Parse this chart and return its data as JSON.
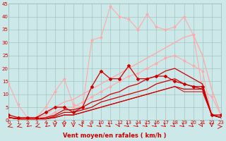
{
  "xlabel": "Vent moyen/en rafales ( km/h )",
  "bg_color": "#cce8e8",
  "grid_color": "#99bbbb",
  "xmin": 0,
  "xmax": 23,
  "ymin": 0,
  "ymax": 45,
  "yticks": [
    0,
    5,
    10,
    15,
    20,
    25,
    30,
    35,
    40,
    45
  ],
  "xticks": [
    0,
    1,
    2,
    3,
    4,
    5,
    6,
    7,
    8,
    9,
    10,
    11,
    12,
    13,
    14,
    15,
    16,
    17,
    18,
    19,
    20,
    21,
    22,
    23
  ],
  "lines": [
    {
      "x": [
        0,
        1,
        2,
        3,
        4,
        5,
        6,
        7,
        8,
        9,
        10,
        11,
        12,
        13,
        14,
        15,
        16,
        17,
        18,
        19,
        20,
        21,
        22,
        23
      ],
      "y": [
        14,
        6,
        1,
        1,
        5,
        11,
        16,
        6,
        5,
        31,
        32,
        44,
        40,
        39,
        35,
        41,
        36,
        35,
        36,
        40,
        33,
        12,
        9,
        2
      ],
      "color": "#ffaaaa",
      "marker": "*",
      "markersize": 2.5,
      "linewidth": 0.8,
      "alpha": 1.0
    },
    {
      "x": [
        0,
        1,
        2,
        3,
        4,
        5,
        6,
        7,
        8,
        9,
        10,
        11,
        12,
        13,
        14,
        15,
        16,
        17,
        18,
        19,
        20,
        21,
        22,
        23
      ],
      "y": [
        1,
        1,
        1,
        1,
        2,
        5,
        7,
        8,
        10,
        12,
        14,
        16,
        18,
        20,
        22,
        24,
        26,
        28,
        30,
        32,
        33,
        25,
        12,
        2
      ],
      "color": "#ffaaaa",
      "marker": null,
      "markersize": 0,
      "linewidth": 1.0,
      "alpha": 1.0
    },
    {
      "x": [
        0,
        1,
        2,
        3,
        4,
        5,
        6,
        7,
        8,
        9,
        10,
        11,
        12,
        13,
        14,
        15,
        16,
        17,
        18,
        19,
        20,
        21,
        22,
        23
      ],
      "y": [
        1,
        1,
        1,
        1,
        1,
        3,
        5,
        5,
        7,
        9,
        11,
        13,
        15,
        17,
        18,
        20,
        22,
        24,
        25,
        23,
        21,
        19,
        2,
        2
      ],
      "color": "#ffaaaa",
      "marker": "*",
      "markersize": 2.5,
      "linewidth": 0.8,
      "alpha": 1.0
    },
    {
      "x": [
        0,
        1,
        2,
        3,
        4,
        5,
        6,
        7,
        8,
        9,
        10,
        11,
        12,
        13,
        14,
        15,
        16,
        17,
        18,
        19,
        20,
        21,
        22,
        23
      ],
      "y": [
        2,
        1,
        1,
        1,
        3,
        5,
        5,
        3,
        5,
        13,
        19,
        16,
        16,
        21,
        16,
        16,
        17,
        17,
        15,
        14,
        13,
        13,
        2,
        2
      ],
      "color": "#cc0000",
      "marker": "D",
      "markersize": 2,
      "linewidth": 0.9,
      "alpha": 1.0
    },
    {
      "x": [
        0,
        1,
        2,
        3,
        4,
        5,
        6,
        7,
        8,
        9,
        10,
        11,
        12,
        13,
        14,
        15,
        16,
        17,
        18,
        19,
        20,
        21,
        22,
        23
      ],
      "y": [
        1,
        0.5,
        0.5,
        0.5,
        0.5,
        1,
        2,
        2,
        3,
        4,
        5,
        6,
        7,
        8,
        9,
        10,
        11,
        12,
        13,
        12,
        12,
        12,
        2,
        1
      ],
      "color": "#cc0000",
      "marker": null,
      "markersize": 0,
      "linewidth": 0.9,
      "alpha": 1.0
    },
    {
      "x": [
        0,
        1,
        2,
        3,
        4,
        5,
        6,
        7,
        8,
        9,
        10,
        11,
        12,
        13,
        14,
        15,
        16,
        17,
        18,
        19,
        20,
        21,
        22,
        23
      ],
      "y": [
        1,
        0.5,
        0.5,
        0.5,
        0.5,
        1.5,
        3,
        3,
        4,
        5,
        7,
        8,
        9,
        10,
        11,
        12,
        14,
        15,
        16,
        14,
        13,
        12,
        2,
        1
      ],
      "color": "#cc0000",
      "marker": null,
      "markersize": 0,
      "linewidth": 0.9,
      "alpha": 1.0
    },
    {
      "x": [
        0,
        1,
        2,
        3,
        4,
        5,
        6,
        7,
        8,
        9,
        10,
        11,
        12,
        13,
        14,
        15,
        16,
        17,
        18,
        19,
        20,
        21,
        22,
        23
      ],
      "y": [
        1,
        0.5,
        0.5,
        0.5,
        1,
        2,
        4,
        4,
        5,
        7,
        8,
        10,
        11,
        13,
        14,
        16,
        17,
        19,
        20,
        18,
        16,
        14,
        2,
        1
      ],
      "color": "#cc0000",
      "marker": null,
      "markersize": 0,
      "linewidth": 0.9,
      "alpha": 1.0
    },
    {
      "x": [
        0,
        1,
        2,
        3,
        4,
        5,
        6,
        7,
        8,
        9,
        10,
        11,
        12,
        13,
        14,
        15,
        16,
        17,
        18,
        19,
        20,
        21,
        22,
        23
      ],
      "y": [
        1,
        0.5,
        0.5,
        0.5,
        0.5,
        1,
        2,
        2,
        3,
        4,
        5,
        6,
        7,
        8,
        9,
        10,
        11,
        12,
        13,
        11,
        11,
        11,
        2,
        1
      ],
      "color": "#cc0000",
      "marker": null,
      "markersize": 0,
      "linewidth": 0.7,
      "alpha": 1.0
    }
  ],
  "arrow_angles": [
    225,
    225,
    200,
    225,
    200,
    180,
    180,
    180,
    170,
    160,
    160,
    160,
    170,
    160,
    160,
    160,
    160,
    160,
    160,
    160,
    160,
    170,
    180,
    90
  ],
  "arrow_color": "#cc0000",
  "xlabel_fontsize": 6,
  "tick_fontsize": 5,
  "tick_color": "#cc0000"
}
